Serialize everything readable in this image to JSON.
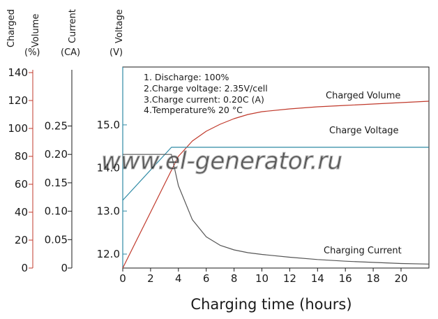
{
  "chart_data": {
    "type": "line",
    "xlabel": "Charging time (hours)",
    "xlim": [
      0,
      22
    ],
    "x_ticks": [
      "0",
      "2",
      "4",
      "6",
      "8",
      "10",
      "12",
      "14",
      "16",
      "18",
      "20"
    ],
    "axes": {
      "volume": {
        "title": [
          "Charged",
          "Volume",
          "(%)"
        ],
        "ylim": [
          0,
          140
        ],
        "ticks": [
          "0",
          "20",
          "40",
          "60",
          "80",
          "100",
          "120",
          "140"
        ],
        "color": "#c0392b"
      },
      "current": {
        "title": [
          "Current",
          "(CA)"
        ],
        "ylim": [
          0,
          0.35
        ],
        "ticks": [
          "0",
          "0.05",
          "0.10",
          "0.15",
          "0.20",
          "0.25"
        ],
        "color": "#000000"
      },
      "voltage": {
        "title": [
          "Voltage",
          "(V)"
        ],
        "ylim": [
          11.8,
          16.0
        ],
        "ticks": [
          "12.0",
          "13.0",
          "14.0",
          "15.0"
        ],
        "color": "#000000"
      }
    },
    "notes": [
      "1. Discharge: 100%",
      "2.Charge voltage: 2.35V/cell",
      "3.Charge current: 0.20C (A)",
      "4.Temperature% 20 °C"
    ],
    "series": [
      {
        "name": "Charged Volume",
        "axis": "volume",
        "color": "#c0392b",
        "x": [
          0,
          1,
          2,
          3,
          3.5,
          4,
          5,
          6,
          7,
          8,
          9,
          10,
          12,
          14,
          16,
          18,
          20,
          22
        ],
        "y": [
          0,
          20,
          40,
          60,
          70,
          80,
          91,
          98,
          103,
          107,
          110,
          112,
          114,
          115.5,
          116.5,
          117.5,
          118.5,
          119.5
        ]
      },
      {
        "name": "Charge Voltage",
        "axis": "voltage",
        "color": "#2e8aa5",
        "x": [
          0,
          3.5,
          22
        ],
        "y": [
          13.25,
          14.48,
          14.48
        ]
      },
      {
        "name": "Charging Current",
        "axis": "current",
        "color": "#555555",
        "x": [
          0,
          3.5,
          4,
          5,
          6,
          7,
          8,
          9,
          10,
          12,
          14,
          16,
          18,
          20,
          22
        ],
        "y": [
          0.2,
          0.2,
          0.145,
          0.085,
          0.055,
          0.04,
          0.032,
          0.027,
          0.024,
          0.019,
          0.015,
          0.012,
          0.01,
          0.008,
          0.007
        ]
      }
    ]
  },
  "watermark": "www.el-generator.ru"
}
